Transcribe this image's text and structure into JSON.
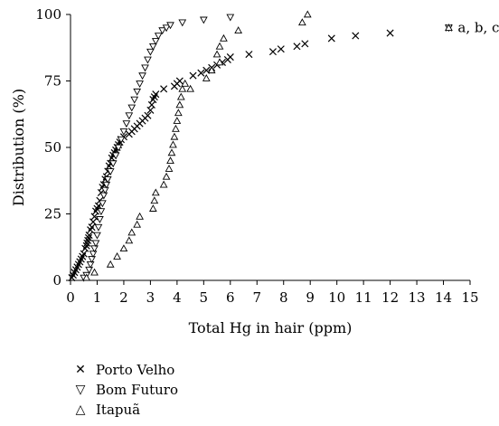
{
  "chart_data": {
    "type": "scatter",
    "xlabel": "Total Hg in hair (ppm)",
    "ylabel": "Distribution (%)",
    "xlim": [
      0,
      15
    ],
    "ylim": [
      0,
      100
    ],
    "xticks": [
      "0",
      "1",
      "2",
      "3",
      "4",
      "5",
      "6",
      "7",
      "8",
      "9",
      "10",
      "11",
      "12",
      "13",
      "14",
      "15"
    ],
    "yticks": [
      "0",
      "25",
      "50",
      "75",
      "100"
    ],
    "grid": false,
    "legend_position": "bottom-left",
    "annotation": {
      "text": "a, b, c",
      "marker": "x-triangle-overlay",
      "x": 14.2,
      "y": 95
    },
    "series": [
      {
        "name": "Porto Velho",
        "marker": "x",
        "points": [
          [
            0.05,
            1
          ],
          [
            0.1,
            2
          ],
          [
            0.15,
            3
          ],
          [
            0.2,
            4
          ],
          [
            0.25,
            5
          ],
          [
            0.3,
            6
          ],
          [
            0.35,
            7
          ],
          [
            0.4,
            8
          ],
          [
            0.45,
            9
          ],
          [
            0.5,
            10
          ],
          [
            0.55,
            12
          ],
          [
            0.6,
            13
          ],
          [
            0.62,
            14
          ],
          [
            0.65,
            15
          ],
          [
            0.68,
            16
          ],
          [
            0.7,
            17
          ],
          [
            0.75,
            19
          ],
          [
            0.8,
            20
          ],
          [
            0.85,
            22
          ],
          [
            0.9,
            24
          ],
          [
            0.95,
            26
          ],
          [
            1.0,
            27
          ],
          [
            1.05,
            28
          ],
          [
            1.1,
            30
          ],
          [
            1.15,
            33
          ],
          [
            1.2,
            35
          ],
          [
            1.25,
            36
          ],
          [
            1.3,
            38
          ],
          [
            1.35,
            39
          ],
          [
            1.4,
            41
          ],
          [
            1.45,
            43
          ],
          [
            1.5,
            44
          ],
          [
            1.55,
            46
          ],
          [
            1.6,
            47
          ],
          [
            1.65,
            48
          ],
          [
            1.7,
            49
          ],
          [
            1.75,
            50
          ],
          [
            1.8,
            51
          ],
          [
            1.85,
            52
          ],
          [
            1.9,
            53
          ],
          [
            2.0,
            54
          ],
          [
            2.2,
            55
          ],
          [
            2.3,
            56
          ],
          [
            2.4,
            57
          ],
          [
            2.5,
            58
          ],
          [
            2.6,
            59
          ],
          [
            2.7,
            60
          ],
          [
            2.8,
            61
          ],
          [
            2.9,
            62
          ],
          [
            3.0,
            64
          ],
          [
            3.05,
            66
          ],
          [
            3.1,
            68
          ],
          [
            3.15,
            69
          ],
          [
            3.2,
            70
          ],
          [
            3.5,
            72
          ],
          [
            3.9,
            73
          ],
          [
            4.0,
            74
          ],
          [
            4.1,
            75
          ],
          [
            4.6,
            77
          ],
          [
            4.9,
            78
          ],
          [
            5.1,
            79
          ],
          [
            5.3,
            80
          ],
          [
            5.5,
            81
          ],
          [
            5.7,
            82
          ],
          [
            5.9,
            83
          ],
          [
            6.0,
            84
          ],
          [
            6.7,
            85
          ],
          [
            7.6,
            86
          ],
          [
            7.9,
            87
          ],
          [
            8.5,
            88
          ],
          [
            8.8,
            89
          ],
          [
            9.8,
            91
          ],
          [
            10.7,
            92
          ],
          [
            12.0,
            93
          ]
        ]
      },
      {
        "name": "Bom Futuro",
        "marker": "triangle-down",
        "points": [
          [
            0.5,
            1
          ],
          [
            0.6,
            2
          ],
          [
            0.7,
            4
          ],
          [
            0.75,
            6
          ],
          [
            0.8,
            8
          ],
          [
            0.85,
            10
          ],
          [
            0.9,
            12
          ],
          [
            0.95,
            14
          ],
          [
            1.0,
            17
          ],
          [
            1.05,
            20
          ],
          [
            1.1,
            23
          ],
          [
            1.15,
            26
          ],
          [
            1.2,
            29
          ],
          [
            1.25,
            32
          ],
          [
            1.3,
            34
          ],
          [
            1.35,
            36
          ],
          [
            1.4,
            38
          ],
          [
            1.5,
            41
          ],
          [
            1.6,
            44
          ],
          [
            1.7,
            47
          ],
          [
            1.8,
            50
          ],
          [
            1.9,
            53
          ],
          [
            2.0,
            56
          ],
          [
            2.1,
            59
          ],
          [
            2.2,
            62
          ],
          [
            2.3,
            65
          ],
          [
            2.4,
            68
          ],
          [
            2.5,
            71
          ],
          [
            2.6,
            74
          ],
          [
            2.7,
            77
          ],
          [
            2.8,
            80
          ],
          [
            2.9,
            83
          ],
          [
            3.0,
            86
          ],
          [
            3.1,
            88
          ],
          [
            3.2,
            90
          ],
          [
            3.3,
            92
          ],
          [
            3.45,
            94
          ],
          [
            3.6,
            95
          ],
          [
            3.75,
            96
          ],
          [
            4.2,
            97
          ],
          [
            5.0,
            98
          ],
          [
            6.0,
            99
          ]
        ]
      },
      {
        "name": "Itapuã",
        "marker": "triangle-up",
        "points": [
          [
            0.6,
            1
          ],
          [
            0.9,
            3
          ],
          [
            1.5,
            6
          ],
          [
            1.75,
            9
          ],
          [
            2.0,
            12
          ],
          [
            2.2,
            15
          ],
          [
            2.3,
            18
          ],
          [
            2.5,
            21
          ],
          [
            2.6,
            24
          ],
          [
            3.1,
            27
          ],
          [
            3.15,
            30
          ],
          [
            3.2,
            33
          ],
          [
            3.5,
            36
          ],
          [
            3.6,
            39
          ],
          [
            3.7,
            42
          ],
          [
            3.75,
            45
          ],
          [
            3.8,
            48
          ],
          [
            3.85,
            51
          ],
          [
            3.9,
            54
          ],
          [
            3.95,
            57
          ],
          [
            4.0,
            60
          ],
          [
            4.05,
            63
          ],
          [
            4.1,
            66
          ],
          [
            4.15,
            69
          ],
          [
            4.2,
            72
          ],
          [
            4.3,
            74
          ],
          [
            4.5,
            72
          ],
          [
            5.1,
            76
          ],
          [
            5.3,
            79
          ],
          [
            5.6,
            82
          ],
          [
            5.5,
            85
          ],
          [
            5.6,
            88
          ],
          [
            5.75,
            91
          ],
          [
            6.3,
            94
          ],
          [
            8.7,
            97
          ],
          [
            8.9,
            100
          ]
        ]
      }
    ]
  }
}
